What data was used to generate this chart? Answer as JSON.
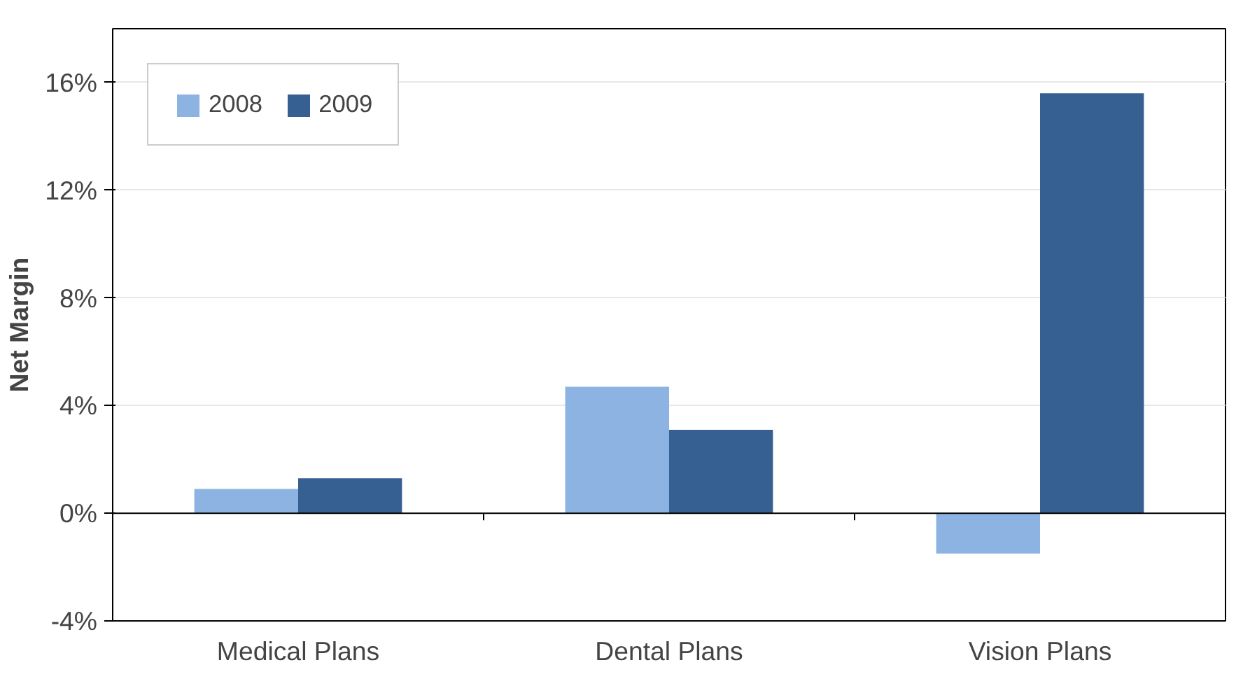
{
  "chart_data": {
    "type": "bar",
    "ylabel": "Net Margin",
    "categories": [
      "Medical Plans",
      "Dental Plans",
      "Vision Plans"
    ],
    "series": [
      {
        "name": "2008",
        "color": "#8db3e2",
        "values": [
          0.9,
          4.7,
          -1.5
        ]
      },
      {
        "name": "2009",
        "color": "#366092",
        "values": [
          1.3,
          3.1,
          15.6
        ]
      }
    ],
    "ylim": [
      -4,
      18
    ],
    "yticks": [
      {
        "value": -4,
        "label": "-4%"
      },
      {
        "value": 0,
        "label": "0%"
      },
      {
        "value": 4,
        "label": "4%"
      },
      {
        "value": 8,
        "label": "8%"
      },
      {
        "value": 12,
        "label": "12%"
      },
      {
        "value": 16,
        "label": "16%"
      }
    ],
    "grid": "y",
    "legend": "top left"
  }
}
